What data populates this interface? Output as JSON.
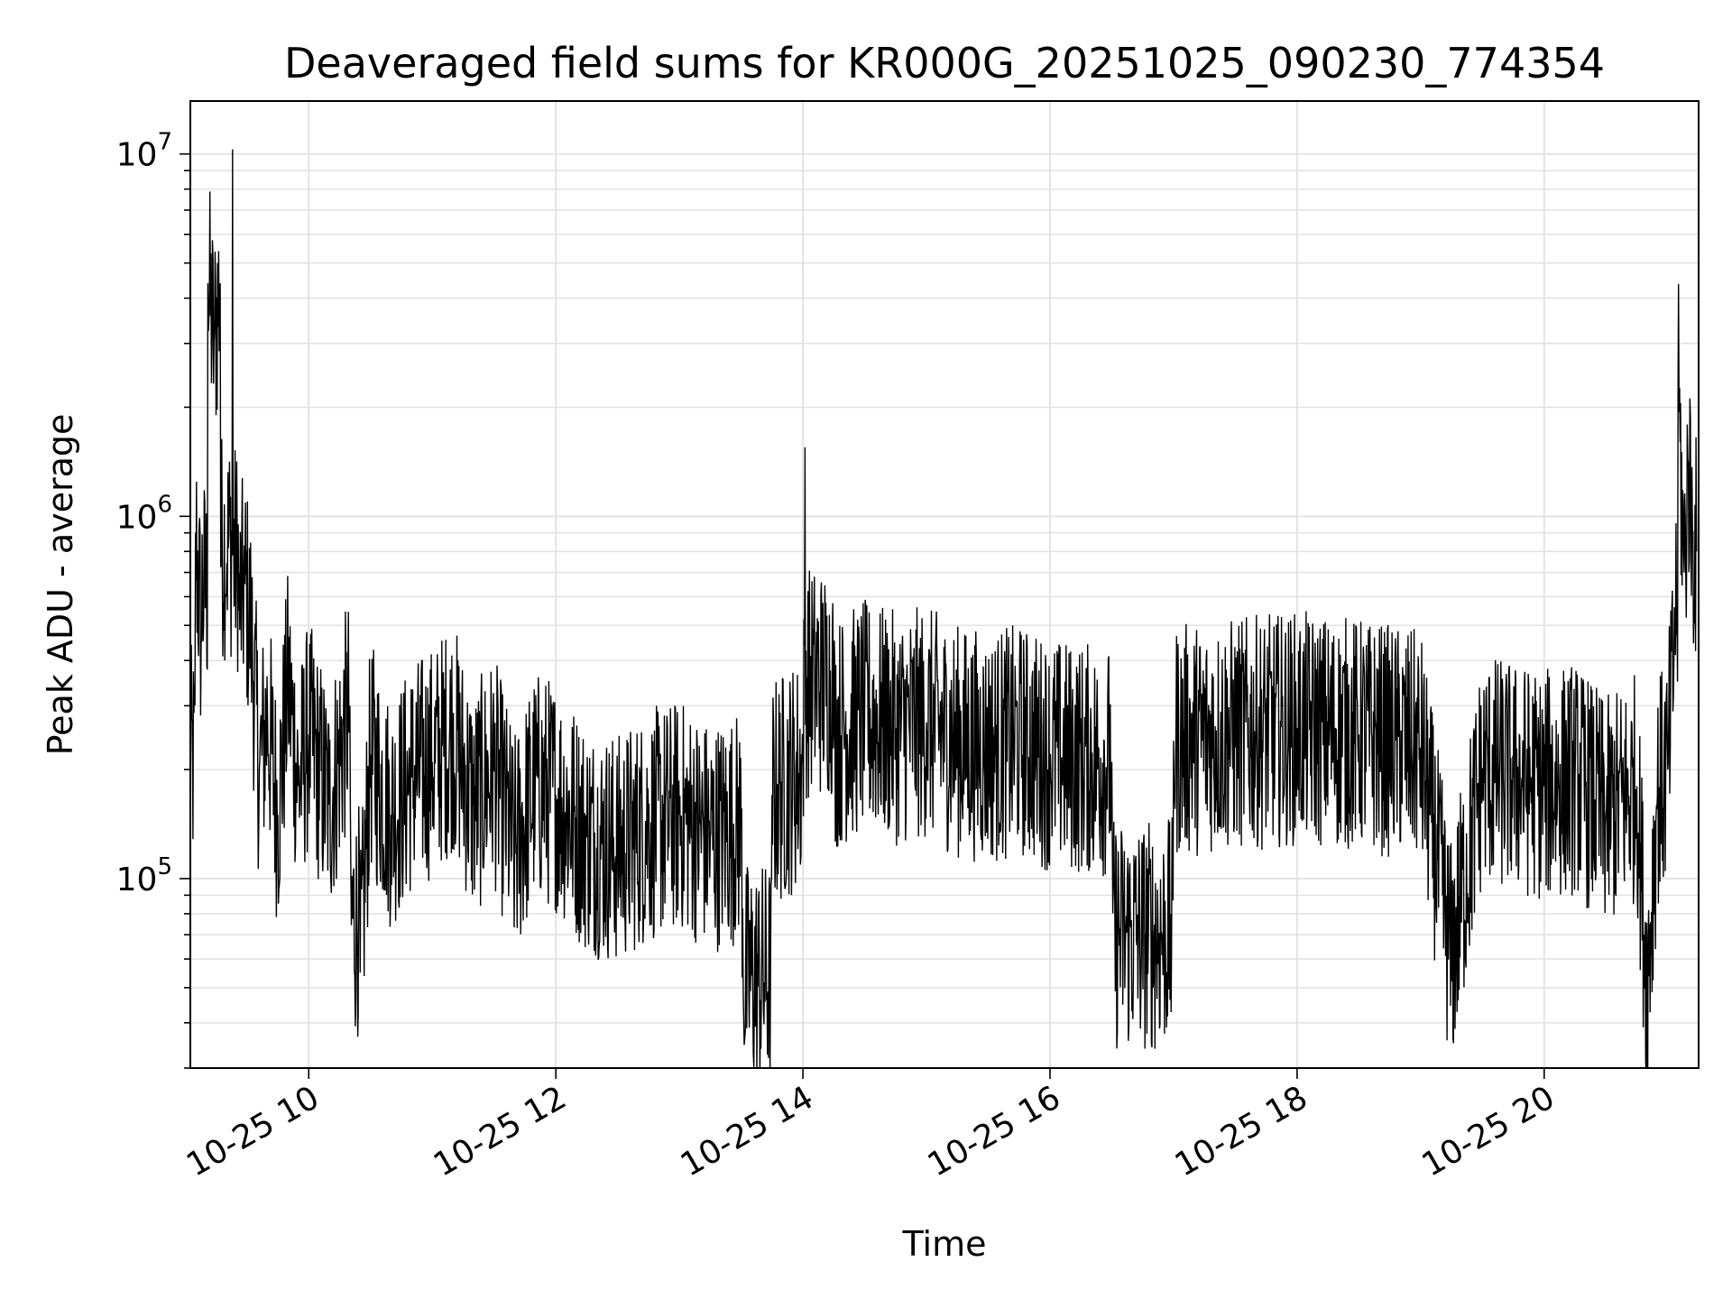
{
  "chart_data": {
    "type": "line",
    "title": "Deaveraged field sums for KR000G_20251025_090230_774354",
    "xlabel": "Time",
    "ylabel": "Peak ADU - average",
    "yscale": "log",
    "ylim": [
      30000,
      14000000
    ],
    "xlim": [
      "2025-10-25 09:02:30",
      "2025-10-25 21:15:00"
    ],
    "grid": true,
    "line_color": "#000000",
    "x_ticks": [
      {
        "label": "10-25 10",
        "t": "2025-10-25 10:00"
      },
      {
        "label": "10-25 12",
        "t": "2025-10-25 12:00"
      },
      {
        "label": "10-25 14",
        "t": "2025-10-25 14:00"
      },
      {
        "label": "10-25 16",
        "t": "2025-10-25 16:00"
      },
      {
        "label": "10-25 18",
        "t": "2025-10-25 18:00"
      },
      {
        "label": "10-25 20",
        "t": "2025-10-25 20:00"
      }
    ],
    "y_ticks": [
      {
        "base": "10",
        "exp": "5",
        "value": 100000
      },
      {
        "base": "10",
        "exp": "6",
        "value": 1000000
      },
      {
        "base": "10",
        "exp": "7",
        "value": 10000000
      }
    ],
    "series": [
      {
        "x": [
          "2025-10-25 09:02",
          "2025-10-25 09:05",
          "2025-10-25 09:08",
          "2025-10-25 09:11",
          "2025-10-25 09:14",
          "2025-10-25 09:17",
          "2025-10-25 09:20",
          "2025-10-25 09:23",
          "2025-10-25 09:26",
          "2025-10-25 09:29",
          "2025-10-25 09:32",
          "2025-10-25 09:36",
          "2025-10-25 09:40",
          "2025-10-25 09:45",
          "2025-10-25 09:50",
          "2025-10-25 09:55",
          "2025-10-25 10:00",
          "2025-10-25 10:10",
          "2025-10-25 10:20",
          "2025-10-25 10:25",
          "2025-10-25 10:30",
          "2025-10-25 10:40",
          "2025-10-25 10:50",
          "2025-10-25 11:00",
          "2025-10-25 11:10",
          "2025-10-25 11:20",
          "2025-10-25 11:30",
          "2025-10-25 11:40",
          "2025-10-25 11:50",
          "2025-10-25 12:00",
          "2025-10-25 12:15",
          "2025-10-25 12:30",
          "2025-10-25 12:45",
          "2025-10-25 13:00",
          "2025-10-25 13:15",
          "2025-10-25 13:30",
          "2025-10-25 13:32",
          "2025-10-25 13:45",
          "2025-10-25 14:00",
          "2025-10-25 14:01",
          "2025-10-25 14:15",
          "2025-10-25 14:30",
          "2025-10-25 14:45",
          "2025-10-25 15:00",
          "2025-10-25 15:15",
          "2025-10-25 15:30",
          "2025-10-25 15:45",
          "2025-10-25 16:00",
          "2025-10-25 16:30",
          "2025-10-25 16:50",
          "2025-10-25 17:00",
          "2025-10-25 17:30",
          "2025-10-25 18:00",
          "2025-10-25 18:30",
          "2025-10-25 19:00",
          "2025-10-25 19:15",
          "2025-10-25 19:30",
          "2025-10-25 19:45",
          "2025-10-25 20:00",
          "2025-10-25 20:15",
          "2025-10-25 20:30",
          "2025-10-25 20:45",
          "2025-10-25 20:50",
          "2025-10-25 20:55",
          "2025-10-25 21:00",
          "2025-10-25 21:03",
          "2025-10-25 21:05",
          "2025-10-25 21:08",
          "2025-10-25 21:10",
          "2025-10-25 21:12",
          "2025-10-25 21:14"
        ],
        "y": [
          150000,
          900000,
          450000,
          4400000,
          3000000,
          4400000,
          600000,
          10300000,
          550000,
          650000,
          480000,
          200000,
          280000,
          150000,
          350000,
          180000,
          250000,
          160000,
          300000,
          55000,
          220000,
          150000,
          190000,
          210000,
          250000,
          160000,
          200000,
          120000,
          180000,
          170000,
          130000,
          120000,
          140000,
          150000,
          130000,
          140000,
          38000,
          170000,
          200000,
          1550000,
          250000,
          280000,
          260000,
          270000,
          240000,
          230000,
          240000,
          220000,
          210000,
          50000,
          240000,
          250000,
          260000,
          250000,
          230000,
          60000,
          200000,
          190000,
          180000,
          190000,
          150000,
          180000,
          50000,
          170000,
          200000,
          400000,
          2300000,
          700000,
          1400000,
          900000,
          800000
        ]
      }
    ]
  }
}
